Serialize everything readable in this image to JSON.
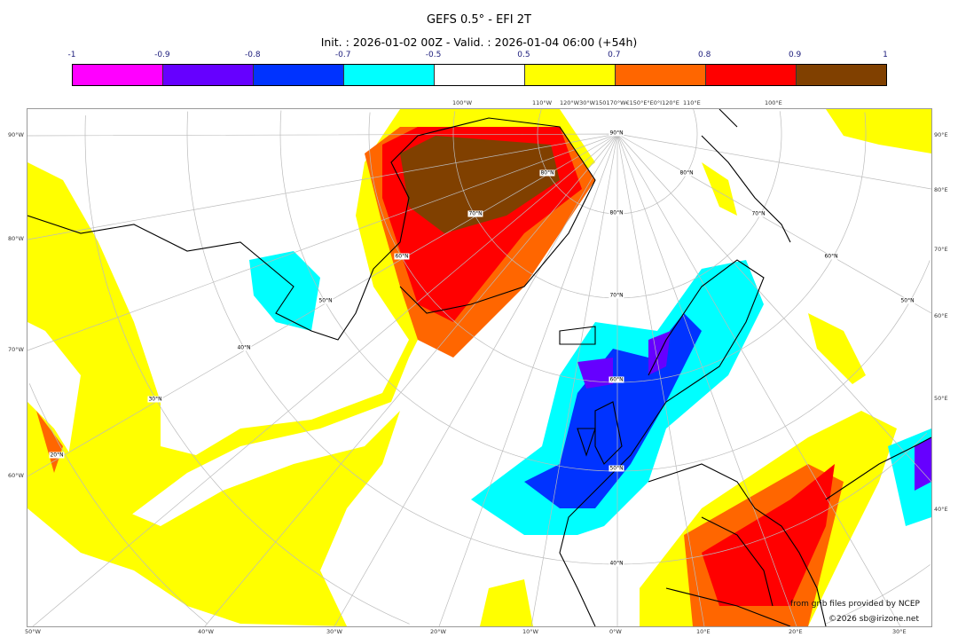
{
  "title": "GEFS 0.5° - EFI 2T",
  "subtitle": "Init. : 2026-01-02 00Z - Valid. : 2026-01-04 06:00 (+54h)",
  "colorbar": {
    "ticks": [
      "-1",
      "-0.9",
      "-0.8",
      "-0.7",
      "-0.5",
      "0.5",
      "0.7",
      "0.8",
      "0.9",
      "1"
    ],
    "colors": [
      "#ff00ff",
      "#6600ff",
      "#0033ff",
      "#00ffff",
      "#ffffff",
      "#ffff00",
      "#ff6600",
      "#ff0000",
      "#804000"
    ]
  },
  "map": {
    "left_labels": [
      "90°W",
      "80°W",
      "70°W",
      "60°W"
    ],
    "right_labels": [
      "90°E",
      "80°E",
      "70°E",
      "60°E",
      "50°E",
      "40°E"
    ],
    "bottom_labels": [
      "50°W",
      "40°W",
      "30°W",
      "20°W",
      "10°W",
      "0°W",
      "10°E",
      "20°E",
      "30°E"
    ],
    "top_labels": [
      "100°W",
      "110°W",
      "120°W30°W150170°W€150°E°E0°I120°E",
      "110°E",
      "100°E"
    ],
    "lat_labels": [
      "90°N",
      "80°N",
      "70°N",
      "60°N",
      "50°N",
      "40°N",
      "30°N",
      "40°N",
      "50°N",
      "60°N",
      "70°N",
      "80°N",
      "20°N",
      "80°N",
      "70°N",
      "60°N",
      "50°N"
    ]
  },
  "footer": {
    "source": "from grib files provided by NCEP",
    "copyright": "©2026 sb@irizone.net"
  }
}
